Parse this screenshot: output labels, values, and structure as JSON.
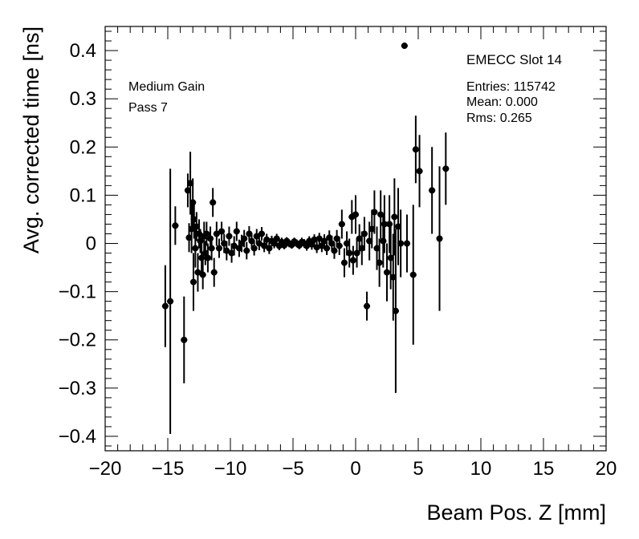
{
  "chart_data": {
    "type": "scatter",
    "title": "",
    "xlabel": "Beam Pos. Z [mm]",
    "ylabel": "Avg. corrected time [ns]",
    "xlim": [
      -20,
      20
    ],
    "ylim": [
      -0.43,
      0.45
    ],
    "xticks": [
      -20,
      -15,
      -10,
      -5,
      0,
      5,
      10,
      15,
      20
    ],
    "xtick_labels": [
      "−20",
      "−15",
      "−10",
      "−5",
      "0",
      "5",
      "10",
      "15",
      "20"
    ],
    "yticks": [
      -0.4,
      -0.3,
      -0.2,
      -0.1,
      0,
      0.1,
      0.2,
      0.3,
      0.4
    ],
    "ytick_labels": [
      "−0.4",
      "−0.3",
      "−0.2",
      "−0.1",
      "0",
      "0.1",
      "0.2",
      "0.3",
      "0.4"
    ],
    "grid": false,
    "marker_color": "#000000",
    "points": [
      {
        "x": -15.2,
        "y": -0.13,
        "err": 0.085
      },
      {
        "x": -14.8,
        "y": -0.12,
        "err": 0.275
      },
      {
        "x": -14.4,
        "y": 0.037,
        "err": 0.04
      },
      {
        "x": -13.7,
        "y": -0.2,
        "err": 0.09
      },
      {
        "x": -13.4,
        "y": 0.11,
        "err": 0.035
      },
      {
        "x": -13.2,
        "y": 0.125,
        "err": 0.065
      },
      {
        "x": -13.1,
        "y": 0.03,
        "err": 0.05
      },
      {
        "x": -13.3,
        "y": 0.012,
        "err": 0.03
      },
      {
        "x": -13.0,
        "y": 0.085,
        "err": 0.05
      },
      {
        "x": -12.95,
        "y": -0.08,
        "err": 0.06
      },
      {
        "x": -12.9,
        "y": 0.05,
        "err": 0.04
      },
      {
        "x": -12.8,
        "y": -0.01,
        "err": 0.04
      },
      {
        "x": -12.7,
        "y": 0.035,
        "err": 0.03
      },
      {
        "x": -12.6,
        "y": -0.06,
        "err": 0.04
      },
      {
        "x": -12.5,
        "y": 0.02,
        "err": 0.03
      },
      {
        "x": -12.4,
        "y": 0.005,
        "err": 0.025
      },
      {
        "x": -12.3,
        "y": -0.03,
        "err": 0.03
      },
      {
        "x": -12.2,
        "y": -0.065,
        "err": 0.03
      },
      {
        "x": -12.1,
        "y": 0.015,
        "err": 0.03
      },
      {
        "x": -12.0,
        "y": -0.02,
        "err": 0.025
      },
      {
        "x": -11.9,
        "y": 0.02,
        "err": 0.025
      },
      {
        "x": -11.8,
        "y": -0.03,
        "err": 0.03
      },
      {
        "x": -11.6,
        "y": 0.01,
        "err": 0.025
      },
      {
        "x": -11.5,
        "y": -0.01,
        "err": 0.025
      },
      {
        "x": -11.4,
        "y": 0.085,
        "err": 0.03
      },
      {
        "x": -11.3,
        "y": -0.06,
        "err": 0.03
      },
      {
        "x": -11.1,
        "y": 0.02,
        "err": 0.025
      },
      {
        "x": -10.9,
        "y": -0.01,
        "err": 0.02
      },
      {
        "x": -10.7,
        "y": 0.025,
        "err": 0.02
      },
      {
        "x": -10.5,
        "y": 0.0,
        "err": 0.02
      },
      {
        "x": -10.3,
        "y": -0.015,
        "err": 0.02
      },
      {
        "x": -10.1,
        "y": 0.015,
        "err": 0.02
      },
      {
        "x": -9.9,
        "y": -0.02,
        "err": 0.02
      },
      {
        "x": -9.7,
        "y": -0.005,
        "err": 0.02
      },
      {
        "x": -9.5,
        "y": 0.025,
        "err": 0.02
      },
      {
        "x": -9.3,
        "y": -0.01,
        "err": 0.018
      },
      {
        "x": -9.1,
        "y": 0.0,
        "err": 0.018
      },
      {
        "x": -8.9,
        "y": 0.01,
        "err": 0.018
      },
      {
        "x": -8.7,
        "y": -0.015,
        "err": 0.018
      },
      {
        "x": -8.5,
        "y": 0.02,
        "err": 0.016
      },
      {
        "x": -8.3,
        "y": 0.005,
        "err": 0.016
      },
      {
        "x": -8.1,
        "y": -0.01,
        "err": 0.015
      },
      {
        "x": -7.9,
        "y": 0.015,
        "err": 0.015
      },
      {
        "x": -7.7,
        "y": 0.0,
        "err": 0.014
      },
      {
        "x": -7.5,
        "y": 0.02,
        "err": 0.014
      },
      {
        "x": -7.3,
        "y": -0.005,
        "err": 0.013
      },
      {
        "x": -7.1,
        "y": 0.008,
        "err": 0.012
      },
      {
        "x": -6.9,
        "y": -0.01,
        "err": 0.012
      },
      {
        "x": -6.7,
        "y": 0.005,
        "err": 0.011
      },
      {
        "x": -6.5,
        "y": 0.0,
        "err": 0.01
      },
      {
        "x": -6.3,
        "y": 0.01,
        "err": 0.01
      },
      {
        "x": -6.1,
        "y": -0.005,
        "err": 0.009
      },
      {
        "x": -5.9,
        "y": 0.003,
        "err": 0.009
      },
      {
        "x": -5.7,
        "y": -0.004,
        "err": 0.008
      },
      {
        "x": -5.5,
        "y": 0.005,
        "err": 0.008
      },
      {
        "x": -5.3,
        "y": 0.0,
        "err": 0.008
      },
      {
        "x": -5.1,
        "y": -0.003,
        "err": 0.008
      },
      {
        "x": -4.9,
        "y": 0.004,
        "err": 0.008
      },
      {
        "x": -4.7,
        "y": 0.0,
        "err": 0.008
      },
      {
        "x": -4.5,
        "y": -0.004,
        "err": 0.008
      },
      {
        "x": -4.3,
        "y": 0.003,
        "err": 0.009
      },
      {
        "x": -4.1,
        "y": 0.0,
        "err": 0.009
      },
      {
        "x": -3.9,
        "y": -0.005,
        "err": 0.01
      },
      {
        "x": -3.7,
        "y": 0.005,
        "err": 0.01
      },
      {
        "x": -3.5,
        "y": -0.002,
        "err": 0.011
      },
      {
        "x": -3.3,
        "y": 0.008,
        "err": 0.011
      },
      {
        "x": -3.1,
        "y": -0.008,
        "err": 0.012
      },
      {
        "x": -2.9,
        "y": 0.01,
        "err": 0.012
      },
      {
        "x": -2.7,
        "y": -0.005,
        "err": 0.013
      },
      {
        "x": -2.5,
        "y": 0.005,
        "err": 0.014
      },
      {
        "x": -2.3,
        "y": -0.01,
        "err": 0.014
      },
      {
        "x": -2.1,
        "y": 0.012,
        "err": 0.015
      },
      {
        "x": -1.9,
        "y": 0.0,
        "err": 0.016
      },
      {
        "x": -1.7,
        "y": -0.015,
        "err": 0.017
      },
      {
        "x": -1.5,
        "y": 0.01,
        "err": 0.018
      },
      {
        "x": -1.3,
        "y": -0.005,
        "err": 0.019
      },
      {
        "x": -1.1,
        "y": 0.04,
        "err": 0.03
      },
      {
        "x": -0.9,
        "y": -0.04,
        "err": 0.03
      },
      {
        "x": -0.7,
        "y": 0.0,
        "err": 0.025
      },
      {
        "x": -0.5,
        "y": -0.02,
        "err": 0.03
      },
      {
        "x": -0.3,
        "y": 0.055,
        "err": 0.035
      },
      {
        "x": -0.2,
        "y": -0.035,
        "err": 0.03
      },
      {
        "x": 0.0,
        "y": 0.06,
        "err": 0.04
      },
      {
        "x": 0.1,
        "y": -0.02,
        "err": 0.03
      },
      {
        "x": 0.3,
        "y": 0.01,
        "err": 0.03
      },
      {
        "x": 0.5,
        "y": -0.01,
        "err": 0.035
      },
      {
        "x": 0.7,
        "y": 0.02,
        "err": 0.035
      },
      {
        "x": 0.9,
        "y": -0.13,
        "err": 0.03
      },
      {
        "x": 1.1,
        "y": 0.005,
        "err": 0.04
      },
      {
        "x": 1.3,
        "y": 0.03,
        "err": 0.04
      },
      {
        "x": 1.5,
        "y": 0.065,
        "err": 0.045
      },
      {
        "x": 1.7,
        "y": -0.01,
        "err": 0.045
      },
      {
        "x": 1.9,
        "y": -0.04,
        "err": 0.05
      },
      {
        "x": 2.0,
        "y": 0.06,
        "err": 0.05
      },
      {
        "x": 2.2,
        "y": 0.005,
        "err": 0.055
      },
      {
        "x": 2.3,
        "y": 0.04,
        "err": 0.06
      },
      {
        "x": 2.5,
        "y": -0.06,
        "err": 0.06
      },
      {
        "x": 2.7,
        "y": 0.04,
        "err": 0.06
      },
      {
        "x": 2.8,
        "y": -0.03,
        "err": 0.065
      },
      {
        "x": 3.0,
        "y": -0.07,
        "err": 0.09
      },
      {
        "x": 3.1,
        "y": 0.055,
        "err": 0.08
      },
      {
        "x": 3.2,
        "y": -0.14,
        "err": 0.17
      },
      {
        "x": 3.4,
        "y": 0.035,
        "err": 0.08
      },
      {
        "x": 3.6,
        "y": 0.0,
        "err": 0.07
      },
      {
        "x": 3.9,
        "y": 0.41,
        "err": 0.0
      },
      {
        "x": 4.1,
        "y": 0.0,
        "err": 0.06
      },
      {
        "x": 4.6,
        "y": -0.065,
        "err": 0.145
      },
      {
        "x": 4.8,
        "y": 0.195,
        "err": 0.07
      },
      {
        "x": 5.1,
        "y": 0.15,
        "err": 0.075
      },
      {
        "x": 6.1,
        "y": 0.11,
        "err": 0.09
      },
      {
        "x": 6.7,
        "y": 0.01,
        "err": 0.15
      },
      {
        "x": 7.2,
        "y": 0.155,
        "err": 0.075
      }
    ]
  },
  "annotations": {
    "gain": "Medium Gain",
    "pass": "Pass 7",
    "slot": "EMECC Slot 14",
    "entries": "Entries: 115742",
    "mean": "Mean: 0.000",
    "rms": "Rms: 0.265"
  }
}
